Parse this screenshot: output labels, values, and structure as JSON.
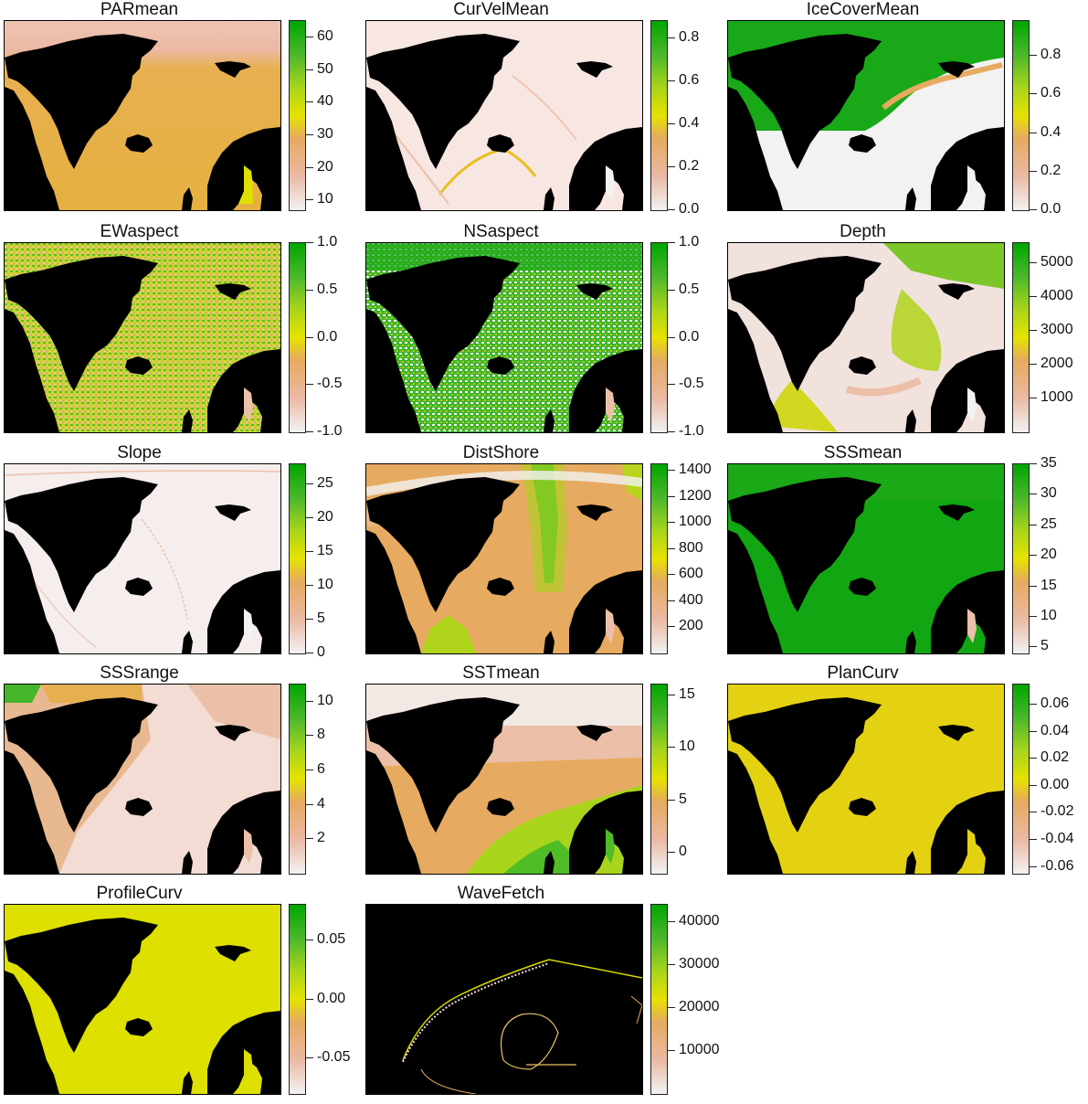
{
  "figure": {
    "layout": {
      "rows": 5,
      "cols": 3,
      "panel_count": 14
    }
  },
  "chart_data": [
    {
      "type": "heatmap",
      "title": "PARmean",
      "colorbar": {
        "ticks": [
          60,
          50,
          40,
          30,
          20,
          10
        ],
        "range": [
          7,
          65
        ]
      },
      "map_style": "par"
    },
    {
      "type": "heatmap",
      "title": "CurVelMean",
      "colorbar": {
        "ticks": [
          0.8,
          0.6,
          0.4,
          0.2,
          0.0
        ],
        "range": [
          0,
          0.88
        ]
      },
      "map_style": "curvel"
    },
    {
      "type": "heatmap",
      "title": "IceCoverMean",
      "colorbar": {
        "ticks": [
          0.8,
          0.6,
          0.4,
          0.2,
          0.0
        ],
        "range": [
          0,
          0.98
        ]
      },
      "map_style": "ice"
    },
    {
      "type": "heatmap",
      "title": "EWaspect",
      "colorbar": {
        "ticks": [
          1.0,
          0.5,
          0.0,
          -0.5,
          -1.0
        ],
        "range": [
          -1,
          1
        ]
      },
      "map_style": "aspect_ew"
    },
    {
      "type": "heatmap",
      "title": "NSaspect",
      "colorbar": {
        "ticks": [
          1.0,
          0.5,
          0.0,
          -0.5,
          -1.0
        ],
        "range": [
          -1,
          1
        ]
      },
      "map_style": "aspect_ns"
    },
    {
      "type": "heatmap",
      "title": "Depth",
      "colorbar": {
        "ticks": [
          5000,
          4000,
          3000,
          2000,
          1000
        ],
        "range": [
          0,
          5600
        ]
      },
      "map_style": "depth"
    },
    {
      "type": "heatmap",
      "title": "Slope",
      "colorbar": {
        "ticks": [
          25,
          20,
          15,
          10,
          5,
          0
        ],
        "range": [
          0,
          28
        ]
      },
      "map_style": "slope"
    },
    {
      "type": "heatmap",
      "title": "DistShore",
      "colorbar": {
        "ticks": [
          1400,
          1200,
          1000,
          800,
          600,
          400,
          200
        ],
        "range": [
          0,
          1450
        ]
      },
      "map_style": "dist"
    },
    {
      "type": "heatmap",
      "title": "SSSmean",
      "colorbar": {
        "ticks": [
          35,
          30,
          25,
          20,
          15,
          10,
          5
        ],
        "range": [
          4,
          35
        ]
      },
      "map_style": "sss"
    },
    {
      "type": "heatmap",
      "title": "SSSrange",
      "colorbar": {
        "ticks": [
          10,
          8,
          6,
          4,
          2
        ],
        "range": [
          0,
          11
        ]
      },
      "map_style": "sssrange"
    },
    {
      "type": "heatmap",
      "title": "SSTmean",
      "colorbar": {
        "ticks": [
          15,
          10,
          5,
          0
        ],
        "range": [
          -2,
          16
        ]
      },
      "map_style": "sst"
    },
    {
      "type": "heatmap",
      "title": "PlanCurv",
      "colorbar": {
        "ticks": [
          0.06,
          0.04,
          0.02,
          0.0,
          -0.02,
          -0.04,
          -0.06
        ],
        "range": [
          -0.065,
          0.075
        ]
      },
      "map_style": "flat"
    },
    {
      "type": "heatmap",
      "title": "ProfileCurv",
      "colorbar": {
        "ticks": [
          0.05,
          0.0,
          -0.05
        ],
        "range": [
          -0.08,
          0.08
        ]
      },
      "map_style": "flat2"
    },
    {
      "type": "heatmap",
      "title": "WaveFetch",
      "colorbar": {
        "ticks": [
          40000,
          30000,
          20000,
          10000
        ],
        "range": [
          0,
          44000
        ]
      },
      "map_style": "wave"
    }
  ]
}
